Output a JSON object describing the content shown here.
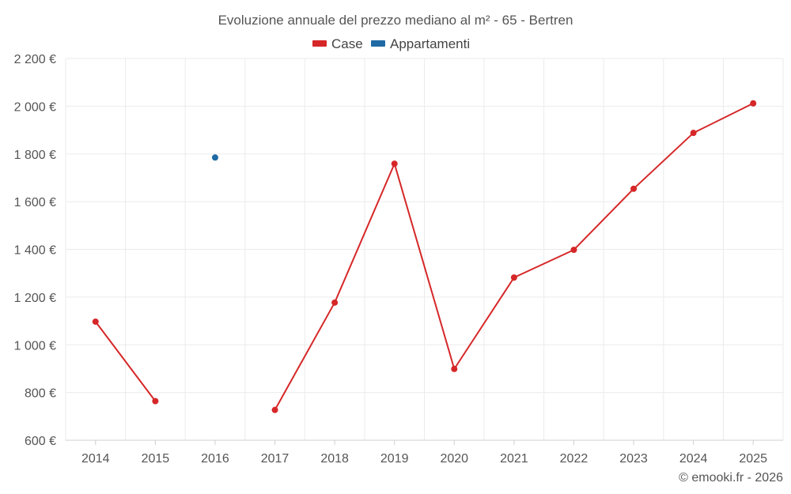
{
  "chart_data": {
    "type": "line",
    "title": "Evoluzione annuale del prezzo mediano al m² - 65 - Bertren",
    "xlabel": "",
    "ylabel": "",
    "categories": [
      "2014",
      "2015",
      "2016",
      "2017",
      "2018",
      "2019",
      "2020",
      "2021",
      "2022",
      "2023",
      "2024",
      "2025"
    ],
    "ylim": [
      600,
      2200
    ],
    "yticks": [
      600,
      800,
      1000,
      1200,
      1400,
      1600,
      1800,
      2000,
      2200
    ],
    "ytick_labels": [
      "600 €",
      "800 €",
      "1 000 €",
      "1 200 €",
      "1 400 €",
      "1 600 €",
      "1 800 €",
      "2 000 €",
      "2 200 €"
    ],
    "grid": true,
    "legend_position": "top-center",
    "series": [
      {
        "name": "Case",
        "color": "#d62728",
        "values": [
          1097,
          764,
          null,
          727,
          1177,
          1759,
          899,
          1282,
          1398,
          1654,
          1888,
          2012
        ]
      },
      {
        "name": "Appartamenti",
        "color": "#1f6aa5",
        "values": [
          null,
          null,
          1785,
          null,
          null,
          null,
          null,
          null,
          null,
          null,
          null,
          null
        ]
      }
    ],
    "credit": "© emooki.fr - 2026"
  }
}
